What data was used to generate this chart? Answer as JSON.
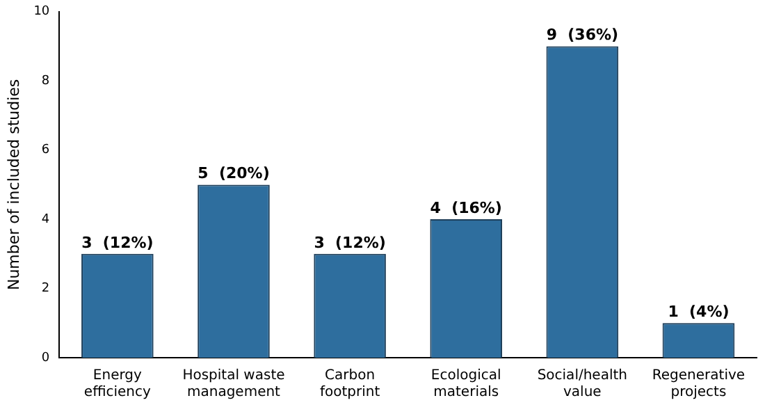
{
  "chart_data": {
    "type": "bar",
    "ylabel": "Number of included studies",
    "categories": [
      "Energy efficiency",
      "Hospital waste management",
      "Carbon footprint",
      "Ecological materials",
      "Social/health value",
      "Regenerative projects"
    ],
    "values": [
      3,
      5,
      3,
      4,
      9,
      1
    ],
    "value_labels": [
      "3  (12%)",
      "5  (20%)",
      "3  (12%)",
      "4  (16%)",
      "9  (36%)",
      "1  (4%)"
    ],
    "color": "#2e6e9e",
    "ylim": [
      0,
      10
    ],
    "yticks": [
      0,
      2,
      4,
      6,
      8,
      10
    ],
    "grid": false,
    "legend": false
  }
}
